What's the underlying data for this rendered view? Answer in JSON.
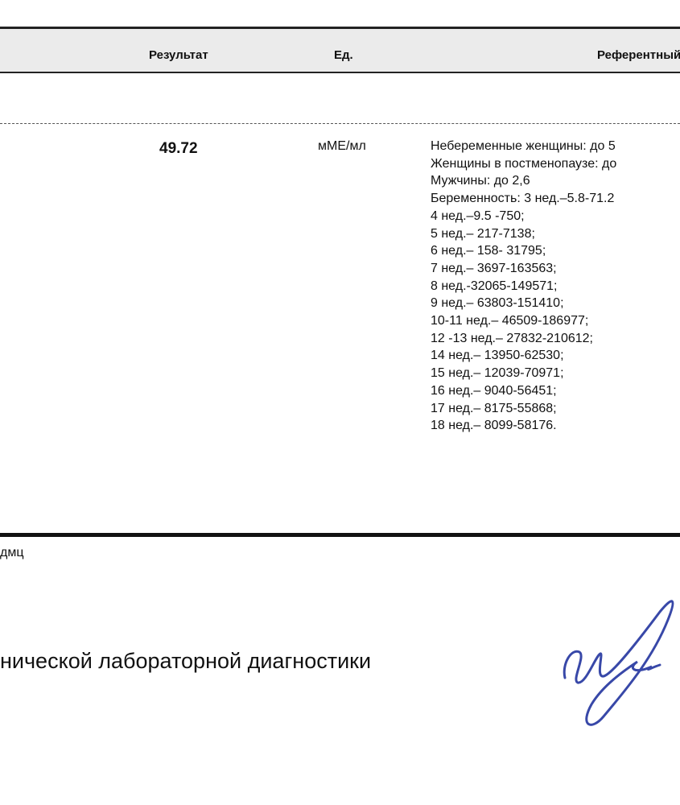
{
  "table": {
    "columns": [
      "Результат",
      "Ед.",
      "Референтный"
    ],
    "row": {
      "result": "49.72",
      "unit": "мМЕ/мл",
      "reference": [
        "Небеременные женщины: до 5",
        "Женщины в постменопаузе: до",
        "Мужчины: до 2,6",
        "Беременность: 3 нед.–5.8-71.2",
        "4 нед.–9.5 -750;",
        "5 нед.– 217-7138;",
        "6 нед.– 158- 31795;",
        "7 нед.– 3697-163563;",
        "8 нед.-32065-149571;",
        "9 нед.– 63803-151410;",
        "10-11 нед.– 46509-186977;",
        "12 -13 нед.– 27832-210612;",
        "14 нед.– 13950-62530;",
        "15 нед.– 12039-70971;",
        "16 нед.– 9040-56451;",
        "17 нед.– 8175-55868;",
        "18 нед.– 8099-58176."
      ]
    }
  },
  "footer": {
    "note": "дмц",
    "signature_title": "ничеcкой лабораторной диагностики"
  }
}
